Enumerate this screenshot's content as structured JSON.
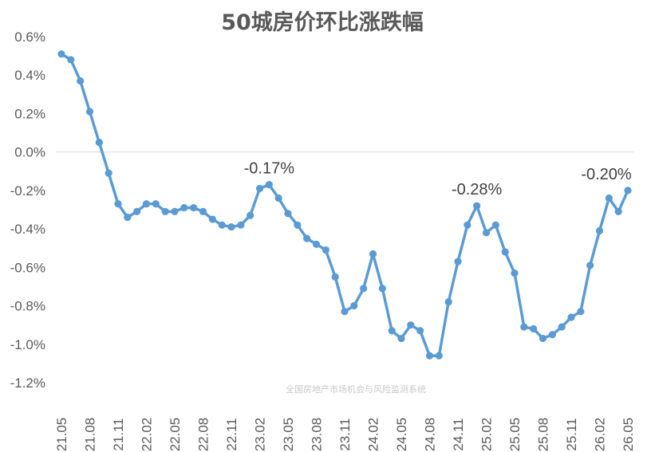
{
  "chart_data": {
    "type": "line",
    "title": "50城房价环比涨跌幅",
    "xlabel": "",
    "ylabel": "",
    "ylim": [
      -1.2,
      0.6
    ],
    "yticks": [
      "0.6%",
      "0.4%",
      "0.2%",
      "0.0%",
      "-0.2%",
      "-0.4%",
      "-0.6%",
      "-0.8%",
      "-1.0%",
      "-1.2%"
    ],
    "xtick_labels": [
      "21.05",
      "21.08",
      "21.11",
      "22.02",
      "22.05",
      "22.08",
      "22.11",
      "23.02",
      "23.05",
      "23.08",
      "23.11",
      "24.02",
      "24.05",
      "24.08",
      "24.11",
      "25.02",
      "25.05",
      "25.08",
      "25.11",
      "26.02",
      "26.05"
    ],
    "grid": false,
    "line_color": "#5b9bd5",
    "x": [
      "21.05",
      "21.06",
      "21.07",
      "21.08",
      "21.09",
      "21.10",
      "21.11",
      "21.12",
      "22.01",
      "22.02",
      "22.03",
      "22.04",
      "22.05",
      "22.06",
      "22.07",
      "22.08",
      "22.09",
      "22.10",
      "22.11",
      "22.12",
      "23.01",
      "23.02",
      "23.03",
      "23.04",
      "23.05",
      "23.06",
      "23.07",
      "23.08",
      "23.09",
      "23.10",
      "23.11",
      "23.12",
      "24.01",
      "24.02",
      "24.03",
      "24.04",
      "24.05",
      "24.06",
      "24.07",
      "24.08",
      "24.09",
      "24.10",
      "24.11",
      "24.12",
      "25.01",
      "25.02",
      "25.03",
      "25.04",
      "25.05",
      "25.06",
      "25.07",
      "25.08",
      "25.09",
      "25.10",
      "25.11",
      "25.12",
      "26.01",
      "26.02",
      "26.03",
      "26.04",
      "26.05"
    ],
    "series": [
      {
        "values": [
          0.51,
          0.48,
          0.37,
          0.21,
          0.05,
          -0.11,
          -0.27,
          -0.34,
          -0.31,
          -0.27,
          -0.27,
          -0.31,
          -0.31,
          -0.29,
          -0.29,
          -0.31,
          -0.35,
          -0.38,
          -0.39,
          -0.38,
          -0.33,
          -0.19,
          -0.17,
          -0.24,
          -0.32,
          -0.38,
          -0.45,
          -0.48,
          -0.51,
          -0.65,
          -0.83,
          -0.8,
          -0.71,
          -0.53,
          -0.71,
          -0.93,
          -0.97,
          -0.9,
          -0.93,
          -1.06,
          -1.06,
          -0.78,
          -0.57,
          -0.38,
          -0.28,
          -0.42,
          -0.38,
          -0.52,
          -0.63,
          -0.91,
          -0.92,
          -0.97,
          -0.95,
          -0.91,
          -0.86,
          -0.83,
          -0.59,
          -0.41,
          -0.24,
          -0.31,
          -0.2
        ]
      }
    ],
    "annotations": [
      {
        "label": "-0.17%",
        "x": "23.03",
        "y": -0.17
      },
      {
        "label": "-0.28%",
        "x": "25.01",
        "y": -0.28
      },
      {
        "label": "-0.20%",
        "x": "26.05",
        "y": -0.2
      }
    ],
    "watermark": "全国房地产市场机会与风险监测系统"
  }
}
